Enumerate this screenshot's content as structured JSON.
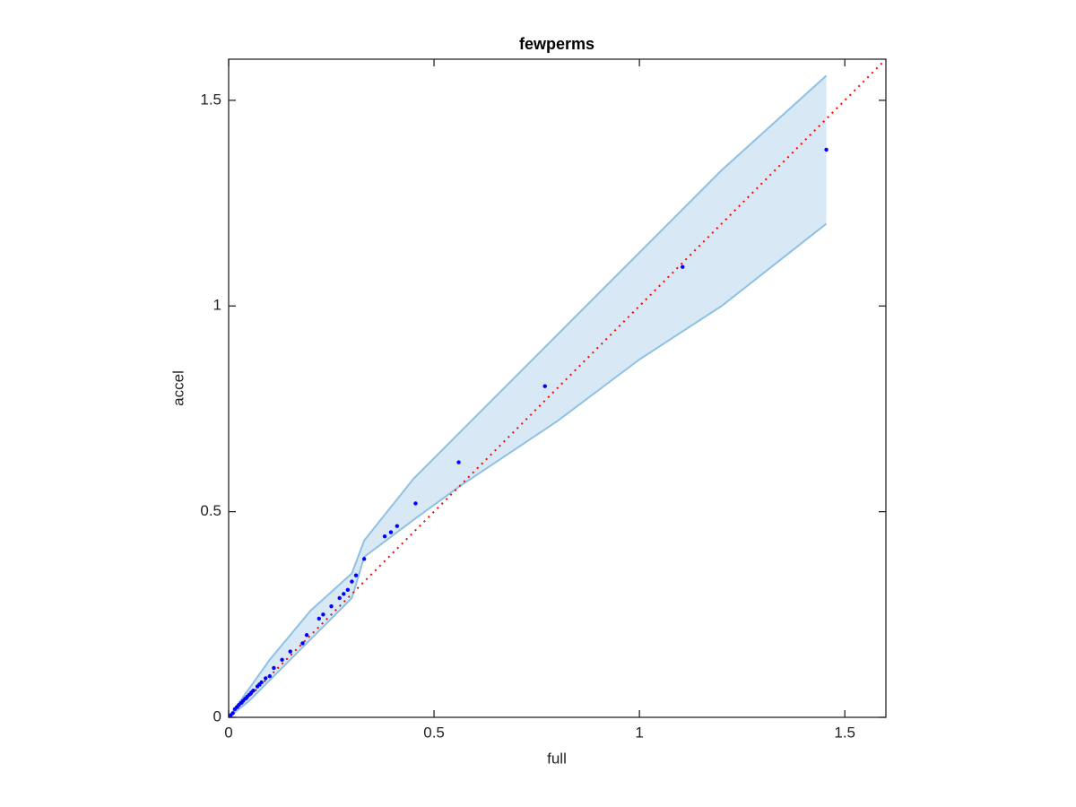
{
  "chart_data": {
    "type": "scatter",
    "title": "fewperms",
    "xlabel": "full",
    "ylabel": "accel",
    "xlim": [
      0,
      1.6
    ],
    "ylim": [
      0,
      1.6
    ],
    "xticks": [
      0,
      0.5,
      1,
      1.5
    ],
    "yticks": [
      0,
      0.5,
      1,
      1.5
    ],
    "grid": false,
    "color": "#0000ff",
    "x": [
      0.005,
      0.01,
      0.015,
      0.02,
      0.025,
      0.03,
      0.035,
      0.04,
      0.045,
      0.05,
      0.055,
      0.06,
      0.07,
      0.075,
      0.08,
      0.09,
      0.1,
      0.11,
      0.13,
      0.15,
      0.18,
      0.19,
      0.22,
      0.23,
      0.25,
      0.27,
      0.28,
      0.29,
      0.3,
      0.31,
      0.33,
      0.38,
      0.395,
      0.41,
      0.455,
      0.56,
      0.77,
      1.105,
      1.455
    ],
    "values": [
      0.005,
      0.01,
      0.02,
      0.025,
      0.03,
      0.035,
      0.04,
      0.045,
      0.05,
      0.055,
      0.06,
      0.065,
      0.075,
      0.08,
      0.085,
      0.095,
      0.1,
      0.12,
      0.14,
      0.16,
      0.18,
      0.2,
      0.24,
      0.25,
      0.27,
      0.29,
      0.3,
      0.31,
      0.33,
      0.345,
      0.385,
      0.44,
      0.45,
      0.465,
      0.52,
      0.62,
      0.805,
      1.095,
      1.38
    ],
    "band": {
      "color": "#8fc1e3",
      "fill": "#d8e8f4",
      "x": [
        0,
        0.05,
        0.1,
        0.2,
        0.3,
        0.33,
        0.45,
        0.56,
        0.8,
        1.0,
        1.2,
        1.455
      ],
      "upper": [
        0,
        0.07,
        0.14,
        0.26,
        0.35,
        0.43,
        0.58,
        0.69,
        0.93,
        1.13,
        1.33,
        1.56
      ],
      "lower": [
        0,
        0.04,
        0.09,
        0.19,
        0.29,
        0.39,
        0.48,
        0.56,
        0.72,
        0.87,
        1.0,
        1.2
      ]
    },
    "reference_line": {
      "color": "#ff0000",
      "x": [
        0,
        1.6
      ],
      "y": [
        0,
        1.6
      ]
    }
  }
}
